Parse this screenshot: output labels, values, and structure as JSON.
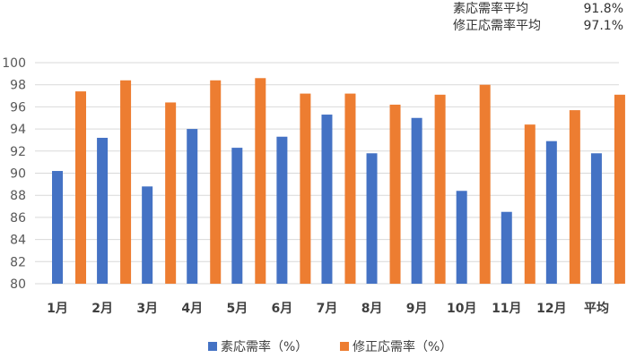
{
  "summary": {
    "items": [
      {
        "label": "素応需率平均",
        "value": "91.8%"
      },
      {
        "label": "修正応需率平均",
        "value": "97.1%"
      }
    ]
  },
  "chart_data": {
    "type": "bar",
    "title": "",
    "xlabel": "",
    "ylabel": "",
    "categories": [
      "1月",
      "2月",
      "3月",
      "4月",
      "5月",
      "6月",
      "7月",
      "8月",
      "9月",
      "10月",
      "11月",
      "12月",
      "平均"
    ],
    "series": [
      {
        "name": "素応需率（%）",
        "color": "#4472C4",
        "values": [
          90.2,
          93.2,
          88.8,
          94.0,
          92.3,
          93.3,
          95.3,
          91.8,
          95.0,
          88.4,
          86.5,
          92.9,
          91.8
        ]
      },
      {
        "name": "修正応需率（%）",
        "color": "#ED7D31",
        "values": [
          97.4,
          98.4,
          96.4,
          98.4,
          98.6,
          97.2,
          97.2,
          96.2,
          97.1,
          98.0,
          94.4,
          95.7,
          97.1
        ]
      }
    ],
    "ylim": [
      80,
      100
    ],
    "yticks": [
      80,
      82,
      84,
      86,
      88,
      90,
      92,
      94,
      96,
      98,
      100
    ],
    "grid": true,
    "legend": "bottom",
    "colors": {
      "grid": "#d9d9d9",
      "text": "#404040",
      "axis_text": "#595959"
    }
  }
}
